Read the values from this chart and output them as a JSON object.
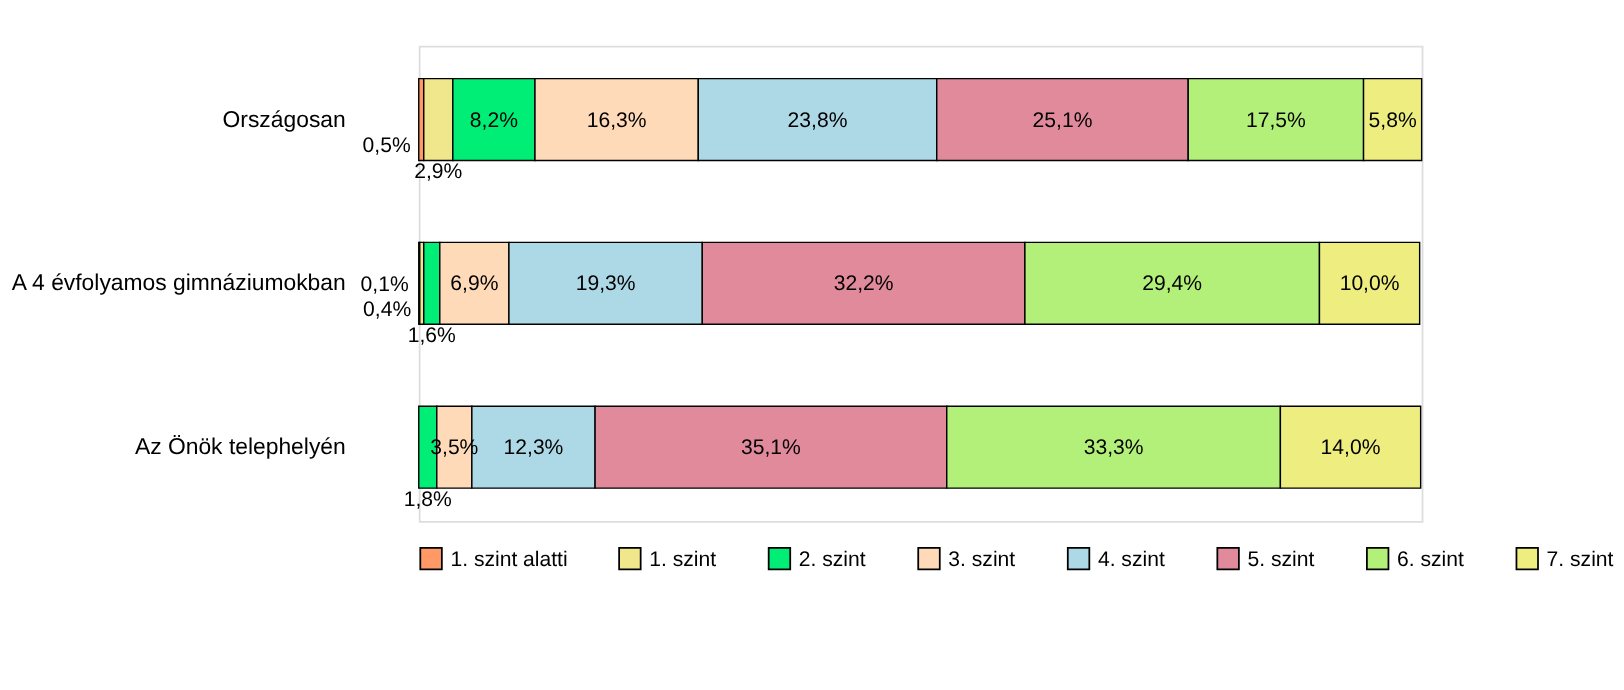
{
  "chart_data": {
    "type": "bar",
    "orientation": "horizontal",
    "stacked": true,
    "legend": "bottom",
    "categories": [
      "Országosan",
      "A 4 évfolyamos gimnáziumokban",
      "Az Önök telephelyén"
    ],
    "series": [
      {
        "name": "1. szint alatti",
        "color": "#ff9966",
        "values": [
          0.5,
          0.1,
          null
        ],
        "value_labels": [
          "0,5%",
          "0,1%",
          null
        ]
      },
      {
        "name": "1. szint",
        "color": "#f0e68c",
        "values": [
          2.9,
          0.4,
          null
        ],
        "value_labels": [
          "2,9%",
          "0,4%",
          null
        ]
      },
      {
        "name": "2. szint",
        "color": "#00ee76",
        "values": [
          8.2,
          1.6,
          1.8
        ],
        "value_labels": [
          "8,2%",
          "1,6%",
          "1,8%"
        ]
      },
      {
        "name": "3. szint",
        "color": "#ffdab9",
        "values": [
          16.3,
          6.9,
          3.5
        ],
        "value_labels": [
          "16,3%",
          "6,9%",
          "3,5%"
        ]
      },
      {
        "name": "4. szint",
        "color": "#add8e6",
        "values": [
          23.8,
          19.3,
          12.3
        ],
        "value_labels": [
          "23,8%",
          "19,3%",
          "12,3%"
        ]
      },
      {
        "name": "5. szint",
        "color": "#e08a9c",
        "values": [
          25.1,
          32.2,
          35.1
        ],
        "value_labels": [
          "25,1%",
          "32,2%",
          "35,1%"
        ]
      },
      {
        "name": "6. szint",
        "color": "#b2f07a",
        "values": [
          17.5,
          29.4,
          33.3
        ],
        "value_labels": [
          "17,5%",
          "29,4%",
          "33,3%"
        ]
      },
      {
        "name": "7. szint",
        "color": "#eeee80",
        "values": [
          5.8,
          10.0,
          14.0
        ],
        "value_labels": [
          "5,8%",
          "10,0%",
          "14,0%"
        ]
      }
    ]
  }
}
